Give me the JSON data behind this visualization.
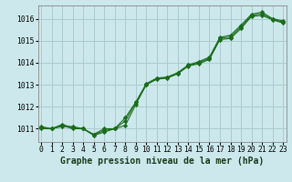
{
  "title": "Graphe pression niveau de la mer (hPa)",
  "bg_color": "#cce8ec",
  "grid_color": "#aacccc",
  "line_color": "#1a6b1a",
  "hours": [
    0,
    1,
    2,
    3,
    4,
    5,
    6,
    7,
    8,
    9,
    10,
    11,
    12,
    13,
    14,
    15,
    16,
    17,
    18,
    19,
    20,
    21,
    22,
    23
  ],
  "line1": [
    1011.1,
    1011.0,
    1011.1,
    1011.1,
    1011.0,
    1010.75,
    1011.0,
    1011.0,
    1011.5,
    1012.2,
    1013.05,
    1013.3,
    1013.35,
    1013.55,
    1013.9,
    1014.05,
    1014.25,
    1015.15,
    1015.25,
    1015.7,
    1016.2,
    1016.3,
    1016.0,
    1015.9
  ],
  "line2": [
    1011.0,
    1011.0,
    1011.15,
    1011.0,
    1011.0,
    1010.7,
    1010.85,
    1011.0,
    1011.15,
    1012.1,
    1013.0,
    1013.25,
    1013.3,
    1013.5,
    1013.85,
    1013.95,
    1014.15,
    1015.05,
    1015.1,
    1015.55,
    1016.1,
    1016.15,
    1015.95,
    1015.8
  ],
  "line3": [
    1011.05,
    1011.0,
    1011.2,
    1011.05,
    1011.0,
    1010.72,
    1010.92,
    1011.0,
    1011.35,
    1012.2,
    1013.0,
    1013.28,
    1013.32,
    1013.52,
    1013.87,
    1014.0,
    1014.2,
    1015.1,
    1015.17,
    1015.62,
    1016.15,
    1016.22,
    1015.97,
    1015.85
  ],
  "ylim": [
    1010.4,
    1016.6
  ],
  "yticks": [
    1011,
    1012,
    1013,
    1014,
    1015,
    1016
  ],
  "xticks": [
    0,
    1,
    2,
    3,
    4,
    5,
    6,
    7,
    8,
    9,
    10,
    11,
    12,
    13,
    14,
    15,
    16,
    17,
    18,
    19,
    20,
    21,
    22,
    23
  ],
  "title_fontsize": 7.0,
  "tick_fontsize": 5.8,
  "ytick_fontsize": 5.8
}
